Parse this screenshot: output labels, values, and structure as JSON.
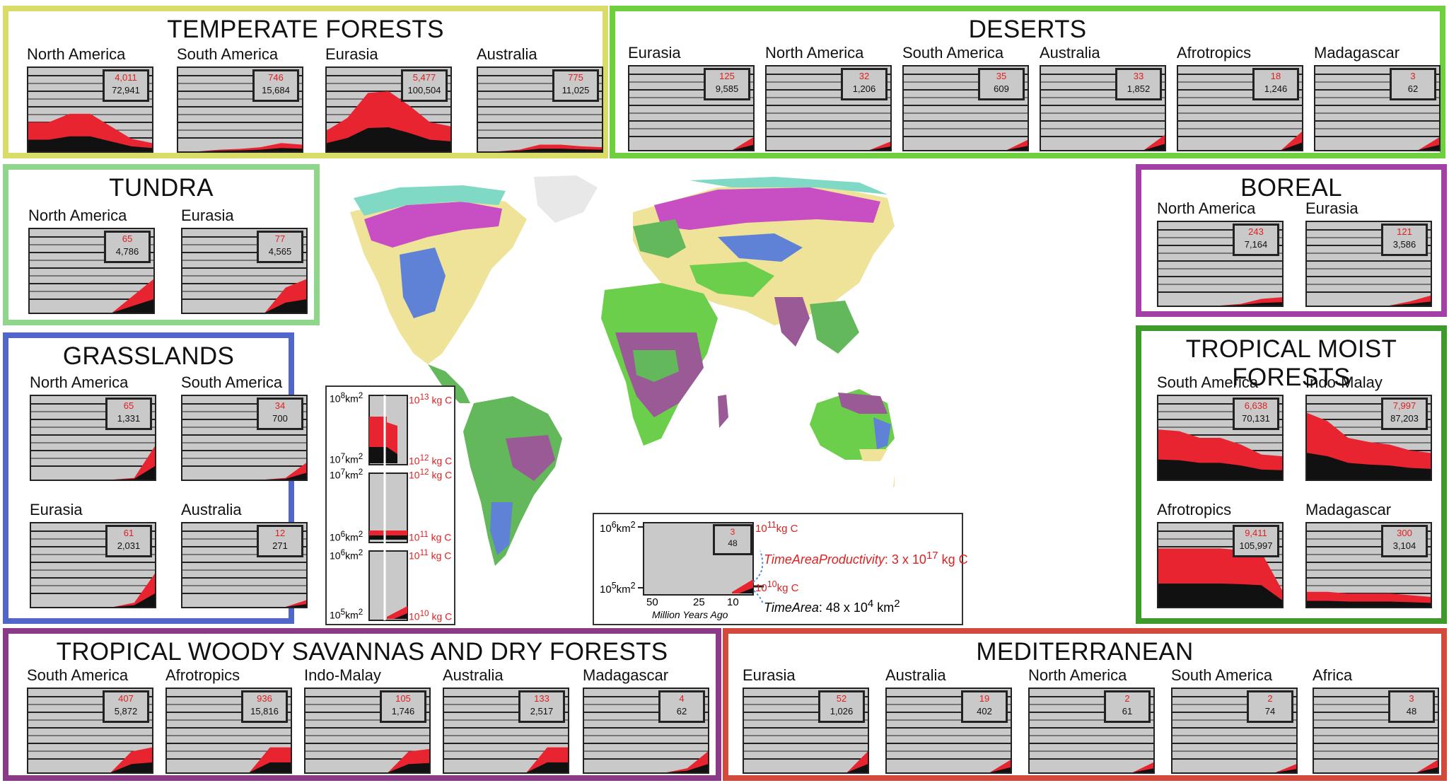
{
  "colors": {
    "temperate": "#d9dc66",
    "deserts": "#6fcf3f",
    "tundra": "#8fd68c",
    "grasslands": "#5066c8",
    "boreal": "#a240a6",
    "tropical_moist": "#3f9a2c",
    "savannas": "#8a3a86",
    "mediterranean": "#d24a3c",
    "area_red": "#e82430",
    "area_black": "#111111",
    "plot_bg": "#c9c9c9"
  },
  "panels": [
    {
      "id": "temperate",
      "title": "TEMPERATE FORESTS",
      "regions": [
        {
          "name": "North America",
          "red": "4,011",
          "black": "72,941",
          "shape": [
            0.35,
            0.35,
            0.45,
            0.45,
            0.3,
            0.15,
            0.1
          ]
        },
        {
          "name": "South America",
          "red": "746",
          "black": "15,684",
          "shape": [
            0,
            0,
            0.02,
            0.03,
            0.05,
            0.1,
            0.08
          ]
        },
        {
          "name": "Eurasia",
          "red": "5,477",
          "black": "100,504",
          "shape": [
            0.25,
            0.4,
            0.7,
            0.72,
            0.55,
            0.35,
            0.3
          ]
        },
        {
          "name": "Australia",
          "red": "775",
          "black": "11,025",
          "shape": [
            0,
            0,
            0.02,
            0.08,
            0.08,
            0.06,
            0.05
          ]
        }
      ]
    },
    {
      "id": "deserts",
      "title": "DESERTS",
      "regions": [
        {
          "name": "Eurasia",
          "red": "125",
          "black": "9,585",
          "shape": [
            0,
            0,
            0,
            0,
            0,
            0,
            0.15
          ]
        },
        {
          "name": "North America",
          "red": "32",
          "black": "1,206",
          "shape": [
            0,
            0,
            0,
            0,
            0,
            0,
            0.1
          ]
        },
        {
          "name": "South America",
          "red": "35",
          "black": "609",
          "shape": [
            0,
            0,
            0,
            0,
            0,
            0,
            0.12
          ]
        },
        {
          "name": "Australia",
          "red": "33",
          "black": "1,852",
          "shape": [
            0,
            0,
            0,
            0,
            0,
            0,
            0.18
          ]
        },
        {
          "name": "Afrotropics",
          "red": "18",
          "black": "1,246",
          "shape": [
            0,
            0,
            0,
            0,
            0,
            0,
            0.22
          ]
        },
        {
          "name": "Madagascar",
          "red": "3",
          "black": "62",
          "shape": [
            0,
            0,
            0,
            0,
            0,
            0,
            0.15
          ]
        }
      ]
    },
    {
      "id": "tundra",
      "title": "TUNDRA",
      "regions": [
        {
          "name": "North America",
          "red": "65",
          "black": "4,786",
          "shape": [
            0,
            0,
            0,
            0,
            0,
            0.2,
            0.4
          ]
        },
        {
          "name": "Eurasia",
          "red": "77",
          "black": "4,565",
          "shape": [
            0,
            0,
            0,
            0,
            0,
            0.3,
            0.4
          ]
        }
      ]
    },
    {
      "id": "grasslands",
      "title": "GRASSLANDS",
      "regions": [
        {
          "name": "North America",
          "red": "65",
          "black": "1,331",
          "shape": [
            0,
            0,
            0,
            0,
            0,
            0.02,
            0.4
          ]
        },
        {
          "name": "South America",
          "red": "34",
          "black": "700",
          "shape": [
            0,
            0,
            0,
            0,
            0,
            0.02,
            0.2
          ]
        },
        {
          "name": "Eurasia",
          "red": "61",
          "black": "2,031",
          "shape": [
            0,
            0,
            0,
            0,
            0,
            0.05,
            0.4
          ]
        },
        {
          "name": "Australia",
          "red": "12",
          "black": "271",
          "shape": [
            0,
            0,
            0,
            0,
            0,
            0,
            0.08
          ]
        }
      ]
    },
    {
      "id": "boreal",
      "title": "BOREAL",
      "regions": [
        {
          "name": "North America",
          "red": "243",
          "black": "7,164",
          "shape": [
            0,
            0,
            0,
            0,
            0.02,
            0.08,
            0.1
          ]
        },
        {
          "name": "Eurasia",
          "red": "121",
          "black": "3,586",
          "shape": [
            0,
            0,
            0,
            0,
            0,
            0.05,
            0.12
          ]
        }
      ]
    },
    {
      "id": "tropical_moist",
      "title": "TROPICAL MOIST FORESTS",
      "regions": [
        {
          "name": "South America",
          "red": "6,638",
          "black": "70,131",
          "shape": [
            0.6,
            0.58,
            0.5,
            0.5,
            0.42,
            0.3,
            0.28
          ]
        },
        {
          "name": "Indo-Malay",
          "red": "7,997",
          "black": "87,203",
          "shape": [
            0.8,
            0.7,
            0.5,
            0.45,
            0.42,
            0.35,
            0.32
          ]
        },
        {
          "name": "Afrotropics",
          "red": "9,411",
          "black": "105,997",
          "shape": [
            0.7,
            0.7,
            0.7,
            0.7,
            0.68,
            0.65,
            0.2
          ]
        },
        {
          "name": "Madagascar",
          "red": "300",
          "black": "3,104",
          "shape": [
            0.18,
            0.18,
            0.16,
            0.16,
            0.16,
            0.14,
            0.12
          ]
        }
      ]
    },
    {
      "id": "savannas",
      "title": "TROPICAL WOODY SAVANNAS AND DRY FORESTS",
      "regions": [
        {
          "name": "South America",
          "red": "407",
          "black": "5,872",
          "shape": [
            0,
            0,
            0,
            0,
            0,
            0.25,
            0.3
          ]
        },
        {
          "name": "Afrotropics",
          "red": "936",
          "black": "15,816",
          "shape": [
            0,
            0,
            0,
            0,
            0,
            0.3,
            0.3
          ]
        },
        {
          "name": "Indo-Malay",
          "red": "105",
          "black": "1,746",
          "shape": [
            0,
            0,
            0,
            0,
            0,
            0.25,
            0.28
          ]
        },
        {
          "name": "Australia",
          "red": "133",
          "black": "2,517",
          "shape": [
            0,
            0,
            0,
            0,
            0,
            0.3,
            0.3
          ]
        },
        {
          "name": "Madagascar",
          "red": "4",
          "black": "62",
          "shape": [
            0,
            0,
            0,
            0,
            0,
            0.05,
            0.25
          ]
        }
      ]
    },
    {
      "id": "mediterranean",
      "title": "MEDITERRANEAN",
      "regions": [
        {
          "name": "Eurasia",
          "red": "52",
          "black": "1,026",
          "shape": [
            0,
            0,
            0,
            0,
            0,
            0,
            0.25
          ]
        },
        {
          "name": "Australia",
          "red": "19",
          "black": "402",
          "shape": [
            0,
            0,
            0,
            0,
            0,
            0,
            0.15
          ]
        },
        {
          "name": "North America",
          "red": "2",
          "black": "61",
          "shape": [
            0,
            0,
            0,
            0,
            0,
            0,
            0.12
          ]
        },
        {
          "name": "South America",
          "red": "2",
          "black": "74",
          "shape": [
            0,
            0,
            0,
            0,
            0,
            0,
            0.1
          ]
        },
        {
          "name": "Africa",
          "red": "3",
          "black": "48",
          "shape": [
            0,
            0,
            0,
            0,
            0,
            0,
            0.15
          ]
        }
      ]
    }
  ],
  "left_scale": {
    "labels": [
      {
        "left": "10",
        "left_sup": "8",
        "left_tail": "km",
        "left_tail_sup": "2",
        "right": "10",
        "right_sup": "13",
        "right_tail": "kg C"
      },
      {
        "left": "10",
        "left_sup": "7",
        "left_tail": "km",
        "left_tail_sup": "2",
        "right": "10",
        "right_sup": "12",
        "right_tail": "kg C"
      },
      {
        "left": "10",
        "left_sup": "7",
        "left_tail": "km",
        "left_tail_sup": "2",
        "right": "10",
        "right_sup": "12",
        "right_tail": "kg C"
      },
      {
        "left": "10",
        "left_sup": "6",
        "left_tail": "km",
        "left_tail_sup": "2",
        "right": "10",
        "right_sup": "11",
        "right_tail": "kg C"
      },
      {
        "left": "10",
        "left_sup": "6",
        "left_tail": "km",
        "left_tail_sup": "2",
        "right": "10",
        "right_sup": "11",
        "right_tail": "kg C"
      },
      {
        "left": "10",
        "left_sup": "5",
        "left_tail": "km",
        "left_tail_sup": "2",
        "right": "10",
        "right_sup": "10",
        "right_tail": "kg C"
      }
    ]
  },
  "legend": {
    "top_left": "10",
    "top_left_sup": "6",
    "top_left_tail": "km",
    "top_left_tail_sup": "2",
    "bottom_left": "10",
    "bottom_left_sup": "5",
    "bottom_left_tail": "km",
    "bottom_left_tail_sup": "2",
    "box_red": "3",
    "box_black": "48",
    "top_right": "10",
    "top_right_sup": "11",
    "top_right_tail": "kg C",
    "bottom_right": "10",
    "bottom_right_sup": "10",
    "bottom_right_tail": "kg C",
    "productivity_label": "TimeAreaProductivity",
    "productivity_value": ": 3 x 10",
    "productivity_sup": "17",
    "productivity_unit": " kg C",
    "area_label": "TimeArea",
    "area_value": ": 48 x 10",
    "area_sup": "4",
    "area_unit": " km",
    "area_unit_sup": "2",
    "x_ticks": [
      "50",
      "25",
      "10"
    ],
    "x_caption": "Million  Years Ago"
  },
  "map": {
    "biomes": {
      "tundra": "#7fd9c4",
      "boreal": "#c84ec4",
      "temperate": "#efe39a",
      "grasslands": "#5f82d6",
      "desert": "#6ccf4c",
      "tropical_moist": "#62b85a",
      "savanna": "#9a5a96",
      "mediterranean": "#e06a4a",
      "ice": "#e8e8e8",
      "mountain": "#cfcfcf"
    }
  }
}
